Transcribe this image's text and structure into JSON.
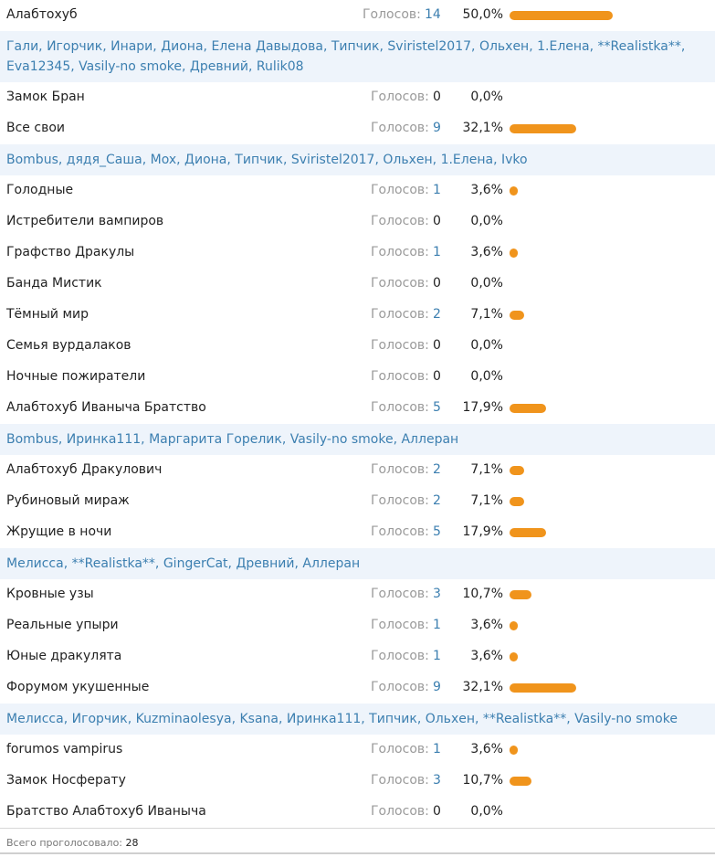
{
  "votes_label": "Голосов:",
  "options": [
    {
      "title": "Алабтохуб",
      "votes": 14,
      "percent": "50,0%",
      "share": 50.0,
      "voters": null
    },
    {
      "title": "",
      "votes": null,
      "percent": "",
      "share": 0,
      "voters": [
        "Гали",
        "Игорчик",
        "Инари",
        "Диона",
        "Елена Давыдова",
        "Типчик",
        "Sviristel2017",
        "Ольхен",
        "1.Елена",
        "**Realistka**",
        "Eva12345",
        "Vasily-no smoke",
        "Древний",
        "Rulik08"
      ]
    },
    {
      "title": "Замок Бран",
      "votes": 0,
      "percent": "0,0%",
      "share": 0,
      "voters": null
    },
    {
      "title": "Все свои",
      "votes": 9,
      "percent": "32,1%",
      "share": 32.1,
      "voters": [
        "Bombus",
        "дядя_Саша",
        "Mox",
        "Диона",
        "Типчик",
        "Sviristel2017",
        "Ольхен",
        "1.Елена",
        "Ivko"
      ]
    },
    {
      "title": "Голодные",
      "votes": 1,
      "percent": "3,6%",
      "share": 3.6,
      "voters": null
    },
    {
      "title": "Истребители вампиров",
      "votes": 0,
      "percent": "0,0%",
      "share": 0,
      "voters": null
    },
    {
      "title": "Графство Дракулы",
      "votes": 1,
      "percent": "3,6%",
      "share": 3.6,
      "voters": null
    },
    {
      "title": "Банда Мистик",
      "votes": 0,
      "percent": "0,0%",
      "share": 0,
      "voters": null
    },
    {
      "title": "Тёмный мир",
      "votes": 2,
      "percent": "7,1%",
      "share": 7.1,
      "voters": null
    },
    {
      "title": "Семья вурдалаков",
      "votes": 0,
      "percent": "0,0%",
      "share": 0,
      "voters": null
    },
    {
      "title": "Ночные пожиратели",
      "votes": 0,
      "percent": "0,0%",
      "share": 0,
      "voters": null
    },
    {
      "title": "Алабтохуб Иваныча Братство",
      "votes": 5,
      "percent": "17,9%",
      "share": 17.9,
      "voters": [
        "Bombus",
        "Иринка111",
        "Маргарита Горелик",
        "Vasily-no smoke",
        "Аллеран"
      ]
    },
    {
      "title": "Алабтохуб Дракулович",
      "votes": 2,
      "percent": "7,1%",
      "share": 7.1,
      "voters": null
    },
    {
      "title": "Рубиновый мираж",
      "votes": 2,
      "percent": "7,1%",
      "share": 7.1,
      "voters": null
    },
    {
      "title": "Жрущие в ночи",
      "votes": 5,
      "percent": "17,9%",
      "share": 17.9,
      "voters": [
        "Мелисса",
        "**Realistka**",
        "GingerCat",
        "Древний",
        "Аллеран"
      ]
    },
    {
      "title": "Кровные узы",
      "votes": 3,
      "percent": "10,7%",
      "share": 10.7,
      "voters": null
    },
    {
      "title": "Реальные упыри",
      "votes": 1,
      "percent": "3,6%",
      "share": 3.6,
      "voters": null
    },
    {
      "title": "Юные дракулята",
      "votes": 1,
      "percent": "3,6%",
      "share": 3.6,
      "voters": null
    },
    {
      "title": "Форумом укушенные",
      "votes": 9,
      "percent": "32,1%",
      "share": 32.1,
      "voters": [
        "Мелисса",
        "Игорчик",
        "Kuzminaolesya",
        "Ksana",
        "Иринка111",
        "Типчик",
        "Ольхен",
        "**Realistka**",
        "Vasily-no smoke"
      ]
    },
    {
      "title": "forumos vampirus",
      "votes": 1,
      "percent": "3,6%",
      "share": 3.6,
      "voters": null
    },
    {
      "title": "Замок Носферату",
      "votes": 3,
      "percent": "10,7%",
      "share": 10.7,
      "voters": null
    },
    {
      "title": "Братство Алабтохуб Иваныча",
      "votes": 0,
      "percent": "0,0%",
      "share": 0,
      "voters": null
    }
  ],
  "footer": {
    "label": "Всего проголосовало:",
    "total": "28"
  },
  "colors": {
    "bar": "#f0941c",
    "link": "#3c7fb0",
    "voters_bg": "#eef4fb",
    "muted": "#9a9a9a"
  }
}
